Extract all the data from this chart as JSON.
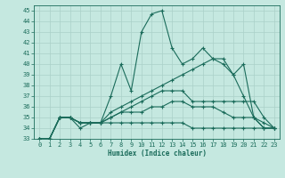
{
  "xlabel": "Humidex (Indice chaleur)",
  "xlim": [
    -0.5,
    23.5
  ],
  "ylim": [
    33,
    45.5
  ],
  "yticks": [
    33,
    34,
    35,
    36,
    37,
    38,
    39,
    40,
    41,
    42,
    43,
    44,
    45
  ],
  "xticks": [
    0,
    1,
    2,
    3,
    4,
    5,
    6,
    7,
    8,
    9,
    10,
    11,
    12,
    13,
    14,
    15,
    16,
    17,
    18,
    19,
    20,
    21,
    22,
    23
  ],
  "bg_color": "#c5e8e0",
  "line_color": "#1a6b5a",
  "grid_color": "#aad0c8",
  "lines": [
    [
      33.0,
      33.0,
      35.0,
      35.0,
      34.5,
      34.5,
      34.5,
      37.0,
      40.0,
      37.5,
      43.0,
      44.7,
      45.0,
      41.5,
      40.0,
      40.5,
      41.5,
      40.5,
      40.0,
      39.0,
      40.0,
      35.0,
      34.0,
      34.0
    ],
    [
      33.0,
      33.0,
      35.0,
      35.0,
      34.5,
      34.5,
      34.5,
      35.5,
      36.0,
      36.5,
      37.0,
      37.5,
      38.0,
      38.5,
      39.0,
      39.5,
      40.0,
      40.5,
      40.5,
      39.0,
      37.0,
      35.0,
      34.0,
      34.0
    ],
    [
      33.0,
      33.0,
      35.0,
      35.0,
      34.5,
      34.5,
      34.5,
      35.0,
      35.5,
      36.0,
      36.5,
      37.0,
      37.5,
      37.5,
      37.5,
      36.5,
      36.5,
      36.5,
      36.5,
      36.5,
      36.5,
      36.5,
      35.0,
      34.0
    ],
    [
      33.0,
      33.0,
      35.0,
      35.0,
      34.5,
      34.5,
      34.5,
      35.0,
      35.5,
      35.5,
      35.5,
      36.0,
      36.0,
      36.5,
      36.5,
      36.0,
      36.0,
      36.0,
      35.5,
      35.0,
      35.0,
      35.0,
      34.5,
      34.0
    ],
    [
      33.0,
      33.0,
      35.0,
      35.0,
      34.0,
      34.5,
      34.5,
      34.5,
      34.5,
      34.5,
      34.5,
      34.5,
      34.5,
      34.5,
      34.5,
      34.0,
      34.0,
      34.0,
      34.0,
      34.0,
      34.0,
      34.0,
      34.0,
      34.0
    ]
  ]
}
